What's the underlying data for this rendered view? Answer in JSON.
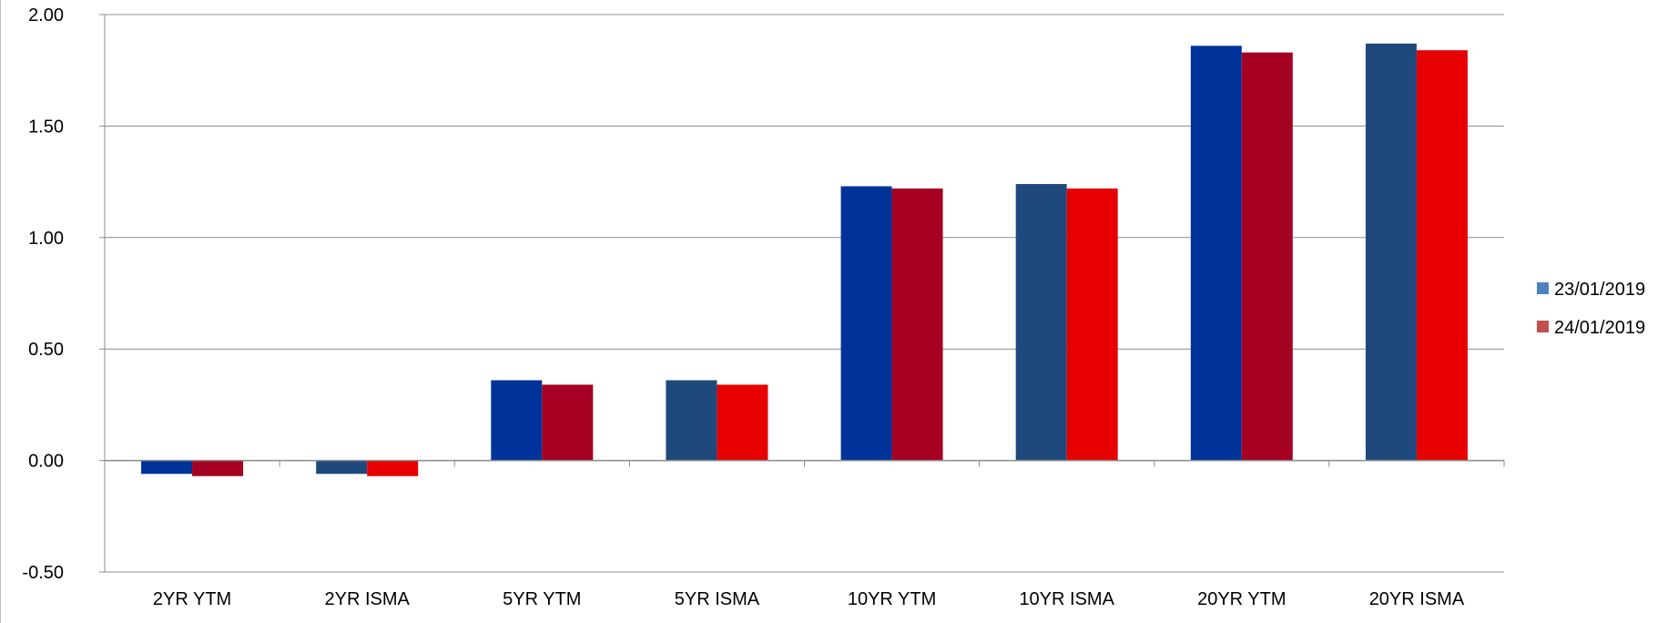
{
  "chart_data": {
    "type": "bar",
    "categories": [
      "2YR YTM",
      "2YR ISMA",
      "5YR YTM",
      "5YR ISMA",
      "10YR YTM",
      "10YR ISMA",
      "20YR YTM",
      "20YR ISMA"
    ],
    "series": [
      {
        "name": "23/01/2019",
        "legend_color": "#4f81bd",
        "values": [
          -0.06,
          -0.06,
          0.36,
          0.36,
          1.23,
          1.24,
          1.86,
          1.87
        ],
        "colors": [
          "#003399",
          "#1f497d",
          "#003399",
          "#1f497d",
          "#003399",
          "#1f497d",
          "#003399",
          "#1f497d"
        ]
      },
      {
        "name": "24/01/2019",
        "legend_color": "#c0504d",
        "values": [
          -0.07,
          -0.07,
          0.34,
          0.34,
          1.22,
          1.22,
          1.83,
          1.84
        ],
        "colors": [
          "#a50021",
          "#e60000",
          "#a50021",
          "#e60000",
          "#a50021",
          "#e60000",
          "#a50021",
          "#e60000"
        ]
      }
    ],
    "ylim": [
      -0.5,
      2.0
    ],
    "yticks": [
      "2.00",
      "1.50",
      "1.00",
      "0.50",
      "0.00",
      "-0.50"
    ],
    "ytick_values": [
      2.0,
      1.5,
      1.0,
      0.5,
      0.0,
      -0.5
    ],
    "grid": true,
    "legend_position": "right"
  }
}
